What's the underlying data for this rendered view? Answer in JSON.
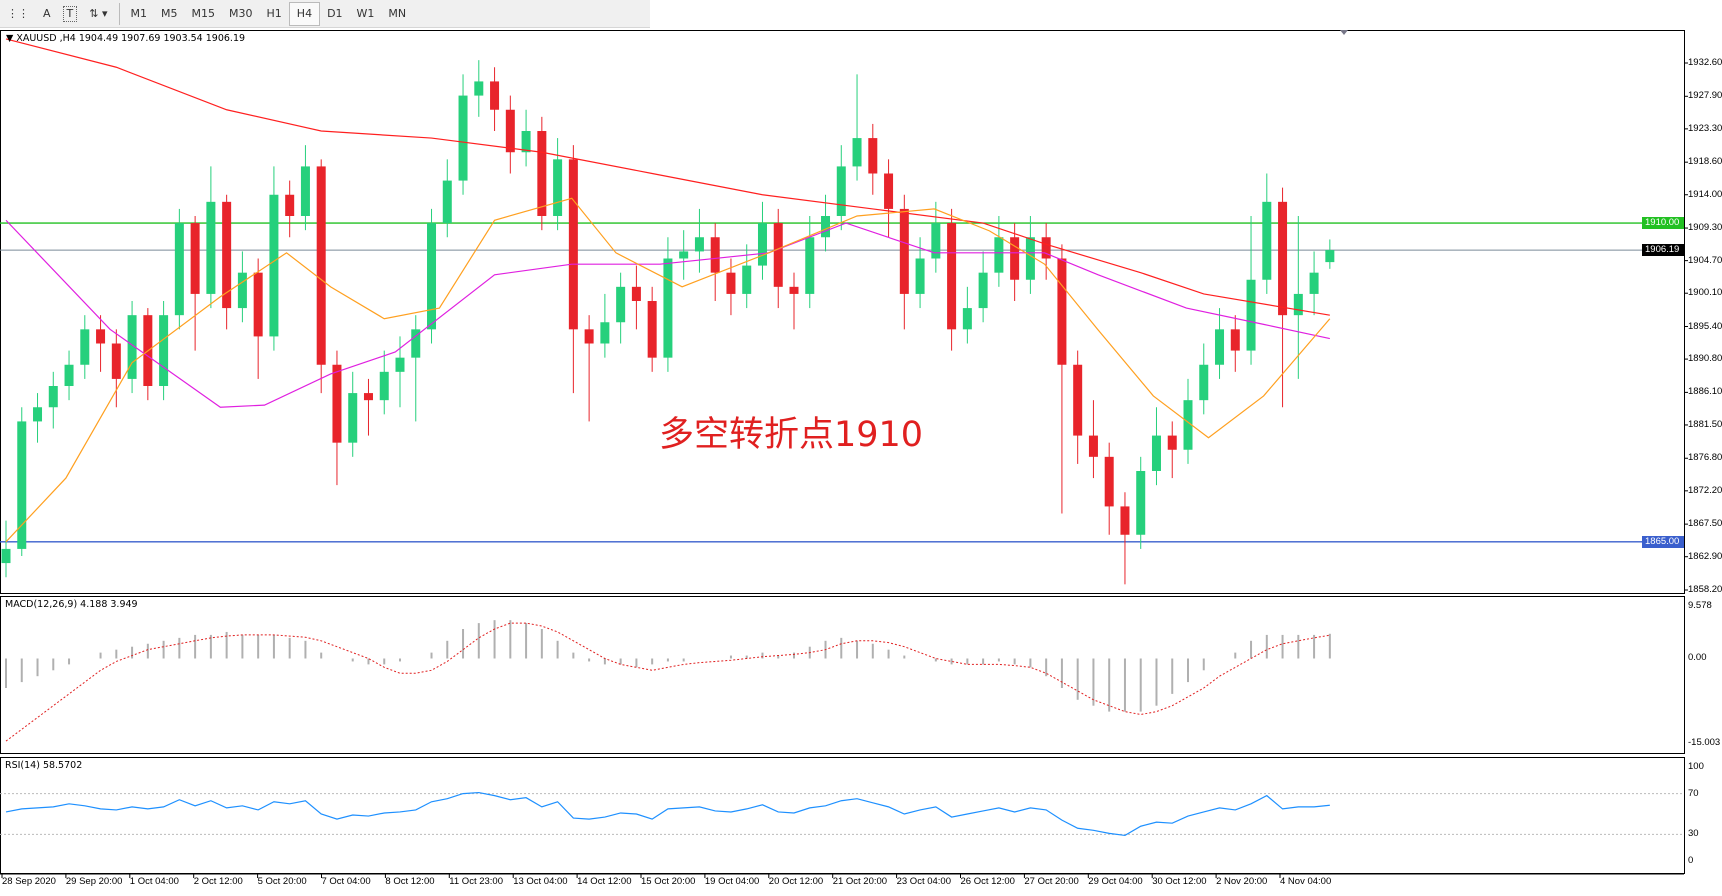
{
  "toolbar": {
    "tools": [
      {
        "icon": "grid-icon"
      },
      {
        "icon": "text-icon",
        "label": "A"
      },
      {
        "icon": "text-label-icon",
        "label": "T"
      },
      {
        "icon": "arrows-icon"
      }
    ],
    "timeframes": [
      "M1",
      "M5",
      "M15",
      "M30",
      "H1",
      "H4",
      "D1",
      "W1",
      "MN"
    ],
    "active_timeframe": "H4"
  },
  "header": {
    "symbol": "XAUUSD",
    "period": "H4",
    "ohlc": "1904.49 1907.69 1903.54 1906.19",
    "text": "XAUUSD ,H4  1904.49 1907.69 1903.54 1906.19"
  },
  "annotation": "多空转折点1910",
  "colors": {
    "bull": "#26d07c",
    "bear": "#e8242b",
    "ma_slow": "#ff2020",
    "ma_mid": "#e020e0",
    "ma_fast": "#ffa020",
    "level_high": "#22c022",
    "level_low": "#3a5fcd",
    "bid": "#7a8a99"
  },
  "chart_data": [
    {
      "type": "candlestick",
      "title": "XAUUSD ,H4",
      "ylim": [
        1858.2,
        1932.6
      ],
      "y_ticks": [
        "1932.60",
        "1927.90",
        "1923.30",
        "1918.60",
        "1914.00",
        "1909.30",
        "1904.70",
        "1900.10",
        "1895.40",
        "1890.80",
        "1886.10",
        "1881.50",
        "1876.80",
        "1872.20",
        "1867.50",
        "1862.90",
        "1858.20"
      ],
      "x_ticks": [
        "28 Sep 2020",
        "29 Sep 20:00",
        "1 Oct 04:00",
        "2 Oct 12:00",
        "5 Oct 20:00",
        "7 Oct 04:00",
        "8 Oct 12:00",
        "11 Oct 23:00",
        "13 Oct 04:00",
        "14 Oct 12:00",
        "15 Oct 20:00",
        "19 Oct 04:00",
        "20 Oct 12:00",
        "21 Oct 20:00",
        "23 Oct 04:00",
        "26 Oct 12:00",
        "27 Oct 20:00",
        "29 Oct 04:00",
        "30 Oct 12:00",
        "2 Nov 20:00",
        "4 Nov 04:00"
      ],
      "levels": [
        {
          "value": 1910.0,
          "label": "1910.00",
          "color": "#22c022"
        },
        {
          "value": 1865.0,
          "label": "1865.00",
          "color": "#3a5fcd"
        }
      ],
      "bid": {
        "value": 1906.19,
        "label": "1906.19"
      },
      "candles": [
        [
          1862,
          1868,
          1860,
          1864
        ],
        [
          1864,
          1884,
          1863,
          1882
        ],
        [
          1882,
          1886,
          1879,
          1884
        ],
        [
          1884,
          1889,
          1881,
          1887
        ],
        [
          1887,
          1892,
          1885,
          1890
        ],
        [
          1890,
          1897,
          1888,
          1895
        ],
        [
          1895,
          1897,
          1889,
          1893
        ],
        [
          1893,
          1895,
          1884,
          1888
        ],
        [
          1888,
          1899,
          1886,
          1897
        ],
        [
          1897,
          1898,
          1885,
          1887
        ],
        [
          1887,
          1899,
          1885,
          1897
        ],
        [
          1897,
          1912,
          1895,
          1910
        ],
        [
          1910,
          1911,
          1892,
          1900
        ],
        [
          1900,
          1918,
          1898,
          1913
        ],
        [
          1913,
          1914,
          1895,
          1898
        ],
        [
          1898,
          1906,
          1896,
          1903
        ],
        [
          1903,
          1905,
          1888,
          1894
        ],
        [
          1894,
          1918,
          1892,
          1914
        ],
        [
          1914,
          1916,
          1908,
          1911
        ],
        [
          1911,
          1921,
          1909,
          1918
        ],
        [
          1918,
          1919,
          1886,
          1890
        ],
        [
          1890,
          1892,
          1873,
          1879
        ],
        [
          1879,
          1889,
          1877,
          1886
        ],
        [
          1886,
          1888,
          1880,
          1885
        ],
        [
          1885,
          1892,
          1883,
          1889
        ],
        [
          1889,
          1894,
          1884,
          1891
        ],
        [
          1891,
          1897,
          1882,
          1895
        ],
        [
          1895,
          1912,
          1893,
          1910
        ],
        [
          1910,
          1919,
          1908,
          1916
        ],
        [
          1916,
          1931,
          1914,
          1928
        ],
        [
          1928,
          1933,
          1925,
          1930
        ],
        [
          1930,
          1932,
          1923,
          1926
        ],
        [
          1926,
          1928,
          1917,
          1920
        ],
        [
          1920,
          1926,
          1918,
          1923
        ],
        [
          1923,
          1925,
          1909,
          1911
        ],
        [
          1911,
          1922,
          1909,
          1919
        ],
        [
          1919,
          1921,
          1886,
          1895
        ],
        [
          1895,
          1897,
          1882,
          1893
        ],
        [
          1893,
          1900,
          1891,
          1896
        ],
        [
          1896,
          1903,
          1893,
          1901
        ],
        [
          1901,
          1904,
          1895,
          1899
        ],
        [
          1899,
          1901,
          1889,
          1891
        ],
        [
          1891,
          1908,
          1889,
          1905
        ],
        [
          1905,
          1909,
          1902,
          1906
        ],
        [
          1906,
          1912,
          1903,
          1908
        ],
        [
          1908,
          1910,
          1899,
          1903
        ],
        [
          1903,
          1905,
          1897,
          1900
        ],
        [
          1900,
          1907,
          1898,
          1904
        ],
        [
          1904,
          1913,
          1902,
          1910
        ],
        [
          1910,
          1912,
          1898,
          1901
        ],
        [
          1901,
          1903,
          1895,
          1900
        ],
        [
          1900,
          1911,
          1898,
          1908
        ],
        [
          1908,
          1914,
          1906,
          1911
        ],
        [
          1911,
          1921,
          1909,
          1918
        ],
        [
          1918,
          1931,
          1916,
          1922
        ],
        [
          1922,
          1924,
          1914,
          1917
        ],
        [
          1917,
          1919,
          1908,
          1912
        ],
        [
          1912,
          1914,
          1895,
          1900
        ],
        [
          1900,
          1908,
          1898,
          1905
        ],
        [
          1905,
          1913,
          1903,
          1910
        ],
        [
          1910,
          1912,
          1892,
          1895
        ],
        [
          1895,
          1901,
          1893,
          1898
        ],
        [
          1898,
          1906,
          1896,
          1903
        ],
        [
          1903,
          1911,
          1901,
          1908
        ],
        [
          1908,
          1910,
          1899,
          1902
        ],
        [
          1902,
          1911,
          1900,
          1908
        ],
        [
          1908,
          1910,
          1902,
          1905
        ],
        [
          1905,
          1907,
          1869,
          1890
        ],
        [
          1890,
          1892,
          1876,
          1880
        ],
        [
          1880,
          1885,
          1874,
          1877
        ],
        [
          1877,
          1879,
          1866,
          1870
        ],
        [
          1870,
          1872,
          1859,
          1866
        ],
        [
          1866,
          1877,
          1864,
          1875
        ],
        [
          1875,
          1884,
          1873,
          1880
        ],
        [
          1880,
          1882,
          1874,
          1878
        ],
        [
          1878,
          1888,
          1876,
          1885
        ],
        [
          1885,
          1893,
          1883,
          1890
        ],
        [
          1890,
          1898,
          1888,
          1895
        ],
        [
          1895,
          1897,
          1889,
          1892
        ],
        [
          1892,
          1911,
          1890,
          1902
        ],
        [
          1902,
          1917,
          1900,
          1913
        ],
        [
          1913,
          1915,
          1884,
          1897
        ],
        [
          1897,
          1911,
          1888,
          1900
        ],
        [
          1900,
          1906,
          1897,
          1903
        ],
        [
          1904.49,
          1907.69,
          1903.54,
          1906.19
        ]
      ],
      "moving_averages": [
        {
          "color": "#ff2020",
          "points": [
            [
              0,
              1936
            ],
            [
              7,
              1932
            ],
            [
              14,
              1926
            ],
            [
              20,
              1923
            ],
            [
              27,
              1922
            ],
            [
              34,
              1920
            ],
            [
              41,
              1917
            ],
            [
              48,
              1914
            ],
            [
              55,
              1912
            ],
            [
              62,
              1910
            ],
            [
              66,
              1907
            ],
            [
              72,
              1903
            ],
            [
              76,
              1900
            ],
            [
              84,
              1897
            ]
          ]
        },
        {
          "color": "#e020e0",
          "points": [
            [
              0,
              1910.4
            ],
            [
              6.6,
              1895
            ],
            [
              13.6,
              1884
            ],
            [
              16.4,
              1884.3
            ],
            [
              20.6,
              1888.7
            ],
            [
              24.7,
              1891.8
            ],
            [
              31,
              1902.7
            ],
            [
              35.9,
              1904.2
            ],
            [
              41.5,
              1904.2
            ],
            [
              48.4,
              1905.8
            ],
            [
              53.3,
              1910
            ],
            [
              58.9,
              1905.8
            ],
            [
              65.9,
              1905.8
            ],
            [
              69.3,
              1902.7
            ],
            [
              74.9,
              1898
            ],
            [
              79.8,
              1895.7
            ],
            [
              84,
              1893.7
            ]
          ]
        },
        {
          "color": "#ffa020",
          "points": [
            [
              0,
              1865
            ],
            [
              3.8,
              1874
            ],
            [
              8,
              1890.3
            ],
            [
              13.6,
              1899.6
            ],
            [
              17.8,
              1905.8
            ],
            [
              20.6,
              1901
            ],
            [
              24,
              1896.5
            ],
            [
              27.5,
              1898
            ],
            [
              31,
              1910.4
            ],
            [
              35.9,
              1913.5
            ],
            [
              38.7,
              1905.8
            ],
            [
              42.9,
              1901
            ],
            [
              48.4,
              1905.8
            ],
            [
              54,
              1911
            ],
            [
              58.9,
              1912
            ],
            [
              62.4,
              1908.9
            ],
            [
              65.9,
              1904.2
            ],
            [
              69.3,
              1894.9
            ],
            [
              72.8,
              1885.6
            ],
            [
              76.3,
              1879.7
            ],
            [
              79.8,
              1885.6
            ],
            [
              84,
              1896.5
            ]
          ]
        }
      ]
    },
    {
      "type": "bar+line",
      "title": "MACD(12,26,9) 4.188 3.949",
      "ylim": [
        -15.003,
        9.578
      ],
      "y_ticks": [
        "9.578",
        "0.00",
        "-15.003"
      ],
      "histogram": [
        -5,
        -4,
        -3,
        -2,
        -1,
        0,
        1,
        1.5,
        2,
        2.5,
        3,
        3.5,
        4,
        4,
        4.5,
        4,
        4,
        4,
        3.5,
        3,
        1,
        0,
        -0.5,
        -1,
        -1,
        -0.5,
        0,
        1,
        3,
        5,
        6,
        6.5,
        6.5,
        6,
        5,
        3,
        1,
        -0.5,
        -1,
        -1,
        -1.5,
        -1,
        -0.5,
        -0.5,
        0,
        0,
        0.5,
        0.5,
        1,
        0.5,
        1,
        2,
        3,
        3.5,
        3,
        2.5,
        1.5,
        0.5,
        0,
        -0.5,
        -1,
        -1,
        -1,
        -0.5,
        -1,
        -1.5,
        -3,
        -5,
        -7,
        -8,
        -9,
        -9,
        -9,
        -8,
        -6,
        -4,
        -2,
        0,
        1,
        3,
        4,
        4,
        4,
        4,
        4.19
      ],
      "signal": [
        -14,
        -12,
        -10,
        -8,
        -6,
        -4,
        -2,
        -0.5,
        0.5,
        1.5,
        2,
        2.5,
        3,
        3.5,
        3.8,
        4,
        4,
        4,
        3.8,
        3.6,
        3,
        2,
        1,
        0,
        -1.5,
        -2.5,
        -2.5,
        -2,
        -0.5,
        1.5,
        3.5,
        5,
        6,
        6,
        5.5,
        4.5,
        3,
        1.5,
        0,
        -1,
        -1.5,
        -2,
        -1.5,
        -1,
        -0.7,
        -0.5,
        -0.3,
        0,
        0.3,
        0.5,
        0.7,
        1,
        1.5,
        2.5,
        3,
        3,
        2.7,
        2,
        1,
        0,
        -0.5,
        -1,
        -1,
        -1,
        -1.2,
        -1.5,
        -2.5,
        -4,
        -5.5,
        -7,
        -8,
        -9,
        -9.5,
        -9,
        -8,
        -6.5,
        -5,
        -3,
        -1.5,
        0,
        1.5,
        2.5,
        3,
        3.5,
        3.95
      ]
    },
    {
      "type": "line",
      "title": "RSI(14) 58.5702",
      "ylim": [
        0,
        100
      ],
      "y_ticks": [
        "100",
        "70",
        "30",
        "0"
      ],
      "levels": [
        70,
        30
      ],
      "values": [
        52,
        55,
        56,
        57,
        60,
        58,
        55,
        54,
        57,
        55,
        57,
        64,
        58,
        63,
        56,
        58,
        54,
        62,
        60,
        63,
        50,
        45,
        49,
        48,
        51,
        52,
        54,
        62,
        65,
        70,
        71,
        68,
        64,
        66,
        57,
        62,
        46,
        45,
        47,
        51,
        50,
        45,
        55,
        56,
        57,
        53,
        52,
        55,
        59,
        52,
        51,
        56,
        58,
        63,
        65,
        61,
        57,
        50,
        54,
        57,
        47,
        50,
        53,
        56,
        52,
        56,
        54,
        44,
        36,
        34,
        31,
        29,
        38,
        42,
        41,
        48,
        52,
        56,
        54,
        60,
        68,
        55,
        57,
        57,
        58.57
      ]
    }
  ]
}
